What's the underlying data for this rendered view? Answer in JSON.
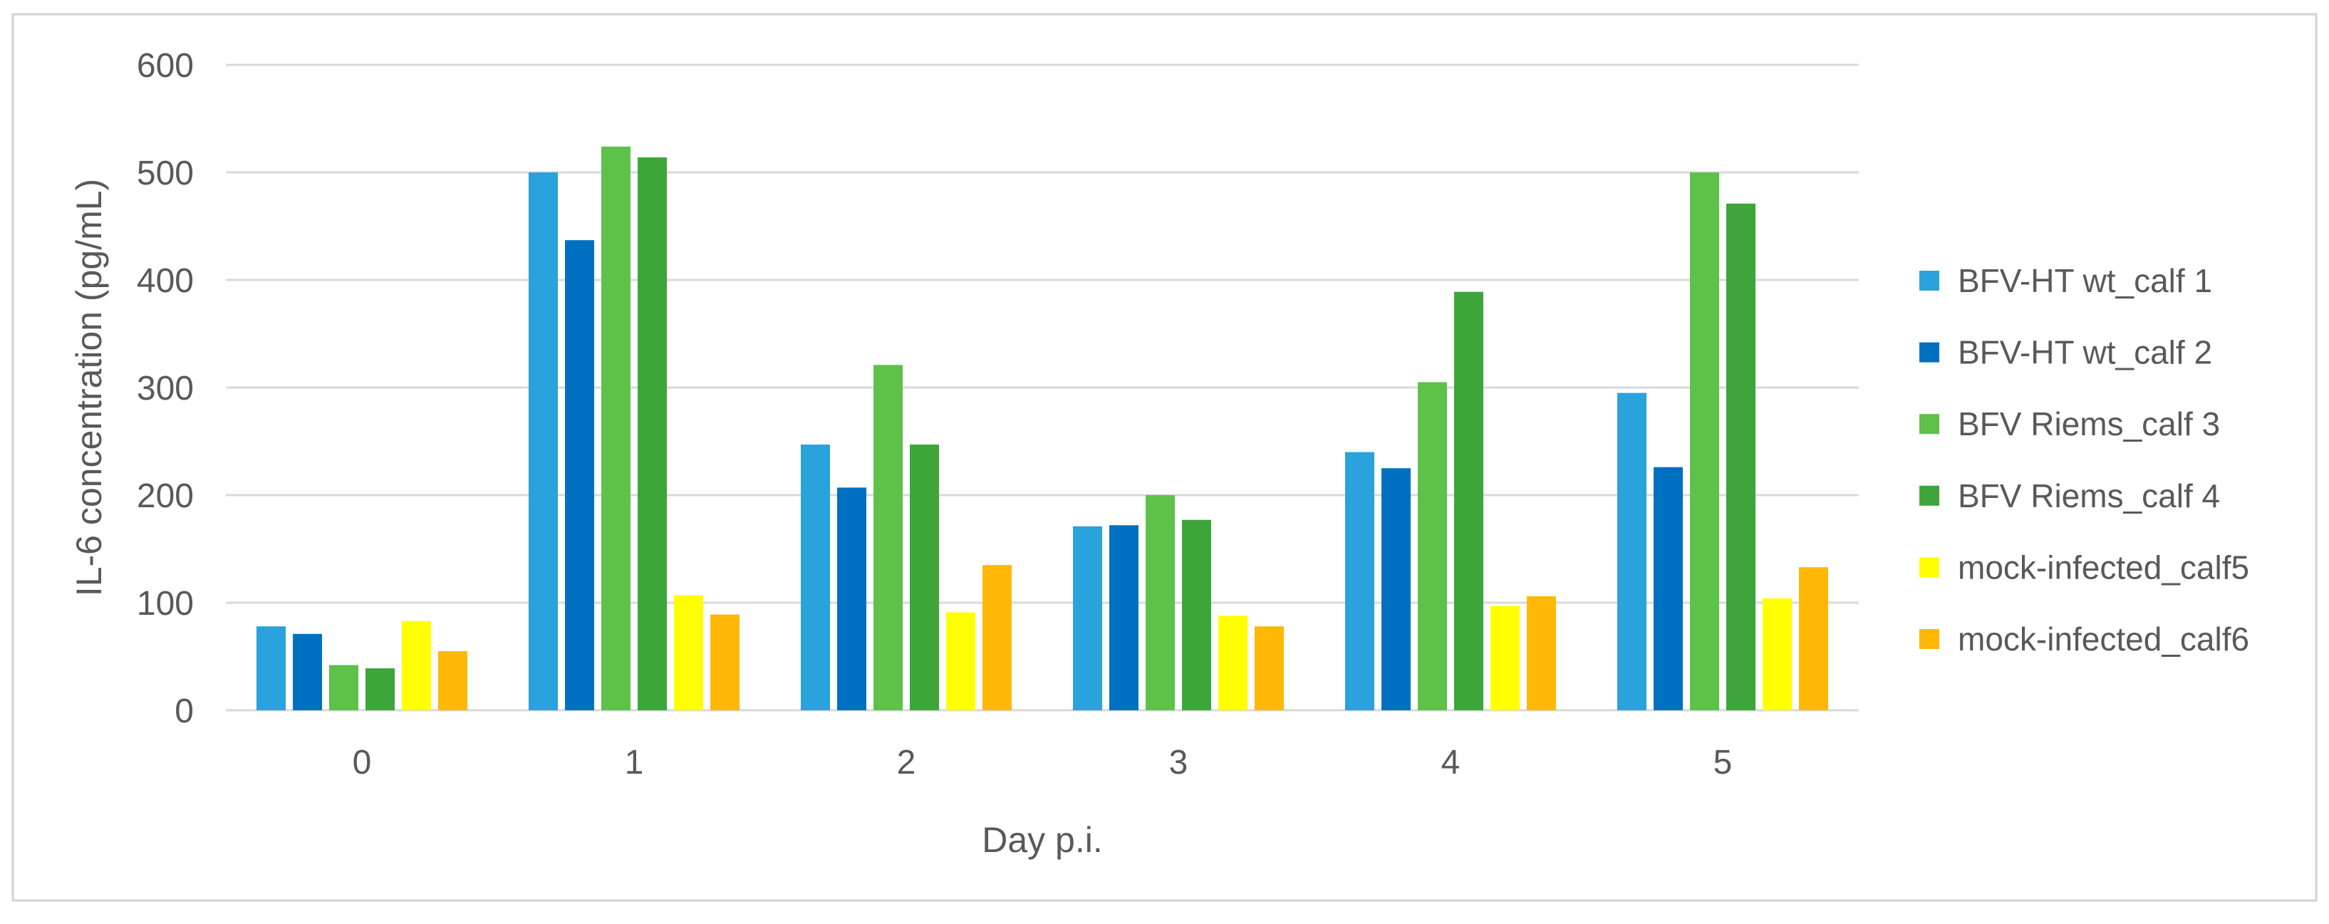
{
  "chart_data": {
    "type": "bar",
    "title": "",
    "xlabel": "Day p.i.",
    "ylabel": "IL-6 concentration (pg/mL)",
    "categories": [
      "0",
      "1",
      "2",
      "3",
      "4",
      "5"
    ],
    "series": [
      {
        "name": "BFV-HT wt_calf 1",
        "color": "#2AA2DC",
        "values": [
          78,
          500,
          247,
          171,
          240,
          295
        ]
      },
      {
        "name": "BFV-HT wt_calf 2",
        "color": "#0070C0",
        "values": [
          71,
          437,
          207,
          172,
          225,
          226
        ]
      },
      {
        "name": "BFV Riems_calf 3",
        "color": "#5EC14A",
        "values": [
          42,
          524,
          321,
          200,
          305,
          500
        ]
      },
      {
        "name": "BFV Riems_calf 4",
        "color": "#3EA53B",
        "values": [
          39,
          514,
          247,
          177,
          389,
          471
        ]
      },
      {
        "name": "mock-infected_calf5",
        "color": "#FFFF00",
        "values": [
          83,
          107,
          91,
          88,
          97,
          104
        ]
      },
      {
        "name": "mock-infected_calf6",
        "color": "#FFB805",
        "values": [
          55,
          89,
          135,
          78,
          106,
          133
        ]
      }
    ],
    "ylim": [
      0,
      600
    ],
    "ytick_step": 100,
    "yticks": [
      "0",
      "100",
      "200",
      "300",
      "400",
      "500",
      "600"
    ],
    "grid": true,
    "legend_position": "right",
    "text_color": "#595959",
    "grid_color": "#D9D9D9",
    "frame_border_color": "#D2D2D2",
    "background": "#FFFFFF"
  }
}
